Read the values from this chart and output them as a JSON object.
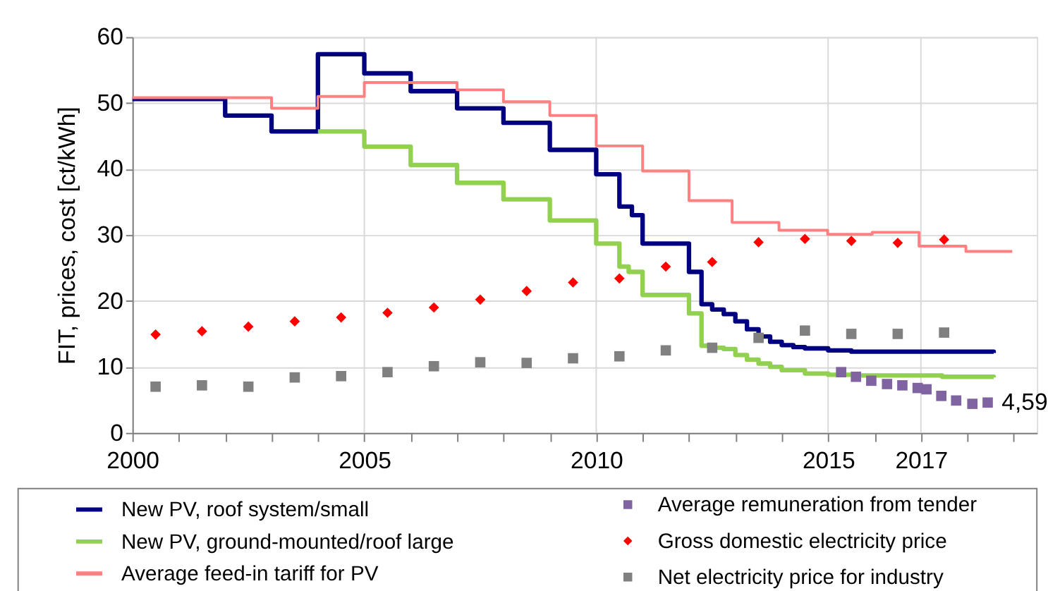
{
  "chart_data": {
    "type": "step",
    "ylabel": "FIT, prices, cost [ct/kWh]",
    "xlim": [
      2000,
      2019.5
    ],
    "xticks": [
      2000,
      {
        "value": 2001,
        "label": null
      },
      {
        "value": 2002,
        "label": null
      },
      {
        "value": 2003,
        "label": null
      },
      {
        "value": 2004,
        "label": null
      },
      2005,
      {
        "value": 2006,
        "label": null
      },
      {
        "value": 2007,
        "label": null
      },
      {
        "value": 2008,
        "label": null
      },
      {
        "value": 2009,
        "label": null
      },
      2010,
      {
        "value": 2011,
        "label": null
      },
      {
        "value": 2012,
        "label": null
      },
      {
        "value": 2013,
        "label": null
      },
      {
        "value": 2014,
        "label": null
      },
      2015,
      {
        "value": 2016,
        "label": null
      },
      2017,
      {
        "value": 2018,
        "label": null
      },
      {
        "value": 2019,
        "label": null
      }
    ],
    "ylim": [
      0,
      60
    ],
    "yticks": [
      0,
      10,
      20,
      30,
      40,
      50,
      60
    ],
    "grid": true,
    "legend": "bottom",
    "annotations": [
      {
        "text": "4,59",
        "x": 2018.44,
        "y": 4.59
      }
    ],
    "series": [
      {
        "name": "New PV, roof system/small",
        "color": "#000080",
        "x": [
          2000,
          2002,
          2003,
          2004,
          2005,
          2006,
          2007,
          2008,
          2009,
          2010,
          2010.5,
          2010.77,
          2011,
          2012,
          2012.27,
          2012.5,
          2012.75,
          2013,
          2013.25,
          2013.5,
          2013.75,
          2014,
          2014.25,
          2014.5,
          2015,
          2015.5,
          2017,
          2018.57
        ],
        "values": [
          50.6,
          48.1,
          45.7,
          57.4,
          54.5,
          51.8,
          49.2,
          47.0,
          42.9,
          39.2,
          34.3,
          33.0,
          28.7,
          24.4,
          19.5,
          18.7,
          18.0,
          16.9,
          15.7,
          14.6,
          13.8,
          13.3,
          13.0,
          12.8,
          12.5,
          12.3,
          12.3,
          12.1
        ]
      },
      {
        "name": "New PV, ground-mounted/roof large",
        "color": "#92d050",
        "x": [
          2004,
          2005,
          2006,
          2007,
          2008,
          2009,
          2010,
          2010.5,
          2010.7,
          2011,
          2012,
          2012.27,
          2012.5,
          2012.75,
          2013,
          2013.25,
          2013.5,
          2013.75,
          2014,
          2014.5,
          2015,
          2015.65,
          2017.46,
          2018.57
        ],
        "values": [
          45.7,
          43.4,
          40.6,
          37.9,
          35.4,
          32.2,
          28.7,
          25.2,
          24.4,
          20.9,
          18.1,
          13.2,
          12.9,
          12.7,
          11.8,
          11.1,
          10.5,
          10.0,
          9.5,
          9.0,
          8.8,
          8.7,
          8.5,
          8.4
        ]
      },
      {
        "name": "Average feed-in tariff for PV",
        "color": "#ff8080",
        "x": [
          2000,
          2003,
          2004,
          2005,
          2007,
          2008,
          2009,
          2010,
          2011,
          2012,
          2012.93,
          2013.94,
          2014.99,
          2015.95,
          2016.96,
          2017.97,
          2018.97
        ],
        "values": [
          50.8,
          49.2,
          51.0,
          53.1,
          52.0,
          50.2,
          48.1,
          43.5,
          39.7,
          35.2,
          31.9,
          30.7,
          30.1,
          30.4,
          28.3,
          27.5,
          27.5
        ]
      },
      {
        "name": "Average remuneration from tender",
        "type": "scatter",
        "marker": "square",
        "color": "#8064a2",
        "x": [
          2015.28,
          2015.6,
          2015.93,
          2016.27,
          2016.6,
          2016.93,
          2017.12,
          2017.44,
          2017.76,
          2018.11,
          2018.44
        ],
        "values": [
          9.2,
          8.5,
          7.9,
          7.4,
          7.2,
          6.8,
          6.6,
          5.6,
          4.9,
          4.4,
          4.59
        ]
      },
      {
        "name": "Gross domestic electricity price",
        "type": "scatter",
        "marker": "diamond",
        "color": "#ff0000",
        "x": [
          2000.5,
          2001.5,
          2002.5,
          2003.5,
          2004.5,
          2005.5,
          2006.5,
          2007.5,
          2008.5,
          2009.5,
          2010.5,
          2011.5,
          2012.5,
          2013.5,
          2014.5,
          2015.5,
          2016.5,
          2017.5
        ],
        "values": [
          14.9,
          15.4,
          16.1,
          16.9,
          17.5,
          18.2,
          19.0,
          20.2,
          21.5,
          22.8,
          23.4,
          25.2,
          25.9,
          28.9,
          29.4,
          29.1,
          28.8,
          29.3
        ]
      },
      {
        "name": "Net electricity price for industry",
        "type": "scatter",
        "marker": "square",
        "color": "#808080",
        "x": [
          2000.5,
          2001.5,
          2002.5,
          2003.5,
          2004.5,
          2005.5,
          2006.5,
          2007.5,
          2008.5,
          2009.5,
          2010.5,
          2011.5,
          2012.5,
          2013.5,
          2014.5,
          2015.5,
          2016.5,
          2017.5
        ],
        "values": [
          7.0,
          7.2,
          7.0,
          8.4,
          8.6,
          9.2,
          10.1,
          10.7,
          10.6,
          11.3,
          11.6,
          12.5,
          12.9,
          14.4,
          15.5,
          15.0,
          15.0,
          15.2
        ]
      }
    ]
  }
}
